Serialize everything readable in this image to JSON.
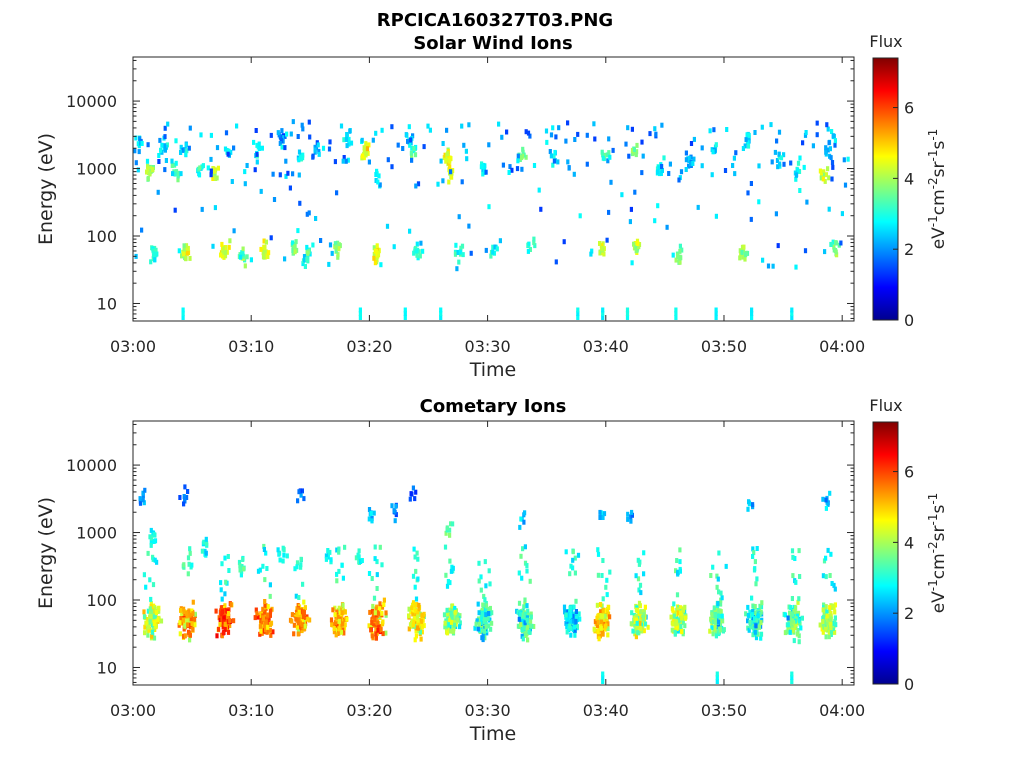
{
  "figure": {
    "filename_title": "RPCICA160327T03.PNG"
  },
  "colorbar": {
    "title": "Flux",
    "range": [
      0,
      7.4
    ],
    "ticks": [
      0,
      2,
      4,
      6
    ],
    "tick_labels": [
      "0",
      "2",
      "4",
      "6"
    ],
    "label_parts": [
      "eV",
      "-1",
      "cm",
      "-2",
      "sr",
      "-1",
      "s",
      "-1"
    ],
    "colormap": "jet"
  },
  "chart_data": [
    {
      "type": "heatmap",
      "title": "Solar Wind Ions",
      "xlabel": "Time",
      "ylabel": "Energy (eV)",
      "x_tick_labels": [
        "03:00",
        "03:10",
        "03:20",
        "03:30",
        "03:40",
        "03:50",
        "04:00"
      ],
      "x_range_minutes": [
        0,
        61
      ],
      "y_scale": "log",
      "y_range": [
        5.5,
        45000
      ],
      "y_tick_labels": [
        "10",
        "100",
        "1000",
        "10000"
      ],
      "y_tick_values": [
        10,
        100,
        1000,
        10000
      ],
      "clusters": [
        {
          "t": 0.5,
          "e": 2500,
          "n": 5,
          "f": 2.2
        },
        {
          "t": 1.3,
          "e": 900,
          "n": 8,
          "f": 4.0
        },
        {
          "t": 1.6,
          "e": 55,
          "n": 8,
          "f": 3.0
        },
        {
          "t": 2.5,
          "e": 2200,
          "n": 5,
          "f": 2.5
        },
        {
          "t": 3.6,
          "e": 900,
          "n": 5,
          "f": 3.5
        },
        {
          "t": 4.3,
          "e": 55,
          "n": 9,
          "f": 4.2
        },
        {
          "t": 4.3,
          "e": 1800,
          "n": 5,
          "f": 2.3
        },
        {
          "t": 5.5,
          "e": 900,
          "n": 4,
          "f": 2.8
        },
        {
          "t": 6.8,
          "e": 850,
          "n": 6,
          "f": 4.2
        },
        {
          "t": 7.6,
          "e": 60,
          "n": 10,
          "f": 4.5
        },
        {
          "t": 8.0,
          "e": 1800,
          "n": 4,
          "f": 2.8
        },
        {
          "t": 9.2,
          "e": 50,
          "n": 8,
          "f": 3.4
        },
        {
          "t": 10.5,
          "e": 1900,
          "n": 4,
          "f": 3.0
        },
        {
          "t": 11.0,
          "e": 60,
          "n": 10,
          "f": 4.3
        },
        {
          "t": 12.5,
          "e": 2800,
          "n": 5,
          "f": 2.0
        },
        {
          "t": 13.5,
          "e": 70,
          "n": 8,
          "f": 3.5
        },
        {
          "t": 14.0,
          "e": 1400,
          "n": 4,
          "f": 2.6
        },
        {
          "t": 14.5,
          "e": 50,
          "n": 8,
          "f": 3.1
        },
        {
          "t": 15.5,
          "e": 1800,
          "n": 4,
          "f": 2.2
        },
        {
          "t": 17.2,
          "e": 60,
          "n": 8,
          "f": 3.8
        },
        {
          "t": 18.0,
          "e": 2800,
          "n": 5,
          "f": 2.4
        },
        {
          "t": 19.5,
          "e": 1800,
          "n": 7,
          "f": 4.4
        },
        {
          "t": 20.5,
          "e": 55,
          "n": 10,
          "f": 4.4
        },
        {
          "t": 20.6,
          "e": 700,
          "n": 4,
          "f": 2.6
        },
        {
          "t": 23.3,
          "e": 2800,
          "n": 5,
          "f": 2.3
        },
        {
          "t": 23.6,
          "e": 1800,
          "n": 4,
          "f": 3.2
        },
        {
          "t": 24.0,
          "e": 60,
          "n": 6,
          "f": 3.2
        },
        {
          "t": 26.5,
          "e": 1400,
          "n": 8,
          "f": 4.5
        },
        {
          "t": 26.8,
          "e": 900,
          "n": 5,
          "f": 4.4
        },
        {
          "t": 27.5,
          "e": 55,
          "n": 6,
          "f": 3.0
        },
        {
          "t": 29.5,
          "e": 1000,
          "n": 5,
          "f": 2.8
        },
        {
          "t": 30.5,
          "e": 60,
          "n": 4,
          "f": 2.8
        },
        {
          "t": 32.8,
          "e": 1500,
          "n": 5,
          "f": 3.5
        },
        {
          "t": 33.5,
          "e": 70,
          "n": 4,
          "f": 3.2
        },
        {
          "t": 35.5,
          "e": 1500,
          "n": 4,
          "f": 2.6
        },
        {
          "t": 39.5,
          "e": 60,
          "n": 7,
          "f": 4.2
        },
        {
          "t": 39.8,
          "e": 1500,
          "n": 4,
          "f": 3.1
        },
        {
          "t": 42.3,
          "e": 1900,
          "n": 4,
          "f": 3.8
        },
        {
          "t": 42.5,
          "e": 70,
          "n": 8,
          "f": 4.0
        },
        {
          "t": 44.5,
          "e": 1000,
          "n": 6,
          "f": 2.6
        },
        {
          "t": 46.0,
          "e": 50,
          "n": 6,
          "f": 3.5
        },
        {
          "t": 47.0,
          "e": 1300,
          "n": 5,
          "f": 2.2
        },
        {
          "t": 49.0,
          "e": 1800,
          "n": 4,
          "f": 2.5
        },
        {
          "t": 51.5,
          "e": 55,
          "n": 8,
          "f": 3.8
        },
        {
          "t": 52.0,
          "e": 2400,
          "n": 5,
          "f": 2.6
        },
        {
          "t": 54.5,
          "e": 1400,
          "n": 5,
          "f": 2.4
        },
        {
          "t": 56.0,
          "e": 900,
          "n": 4,
          "f": 2.8
        },
        {
          "t": 58.3,
          "e": 800,
          "n": 6,
          "f": 4.2
        },
        {
          "t": 58.8,
          "e": 1800,
          "n": 4,
          "f": 2.2
        },
        {
          "t": 59.3,
          "e": 70,
          "n": 6,
          "f": 3.5
        },
        {
          "t": 59.0,
          "e": 3000,
          "n": 3,
          "f": 2.4
        }
      ],
      "low_streaks": [
        4.1,
        19.1,
        22.9,
        25.9,
        37.5,
        39.6,
        41.7,
        45.8,
        49.2,
        52.2,
        55.6
      ]
    },
    {
      "type": "heatmap",
      "title": "Cometary Ions",
      "xlabel": "Time",
      "ylabel": "Energy (eV)",
      "x_tick_labels": [
        "03:00",
        "03:10",
        "03:20",
        "03:30",
        "03:40",
        "03:50",
        "04:00"
      ],
      "x_range_minutes": [
        0,
        61
      ],
      "y_scale": "log",
      "y_range": [
        5.5,
        45000
      ],
      "y_tick_labels": [
        "10",
        "100",
        "1000",
        "10000"
      ],
      "y_tick_values": [
        10,
        100,
        1000,
        10000
      ],
      "bands": [
        {
          "t": 1.5,
          "f": 5.2
        },
        {
          "t": 4.5,
          "f": 6.2
        },
        {
          "t": 7.7,
          "f": 6.8
        },
        {
          "t": 11.0,
          "f": 6.5
        },
        {
          "t": 14.0,
          "f": 6.2
        },
        {
          "t": 17.3,
          "f": 6.0
        },
        {
          "t": 20.5,
          "f": 6.4
        },
        {
          "t": 23.8,
          "f": 5.6
        },
        {
          "t": 26.8,
          "f": 4.6
        },
        {
          "t": 29.5,
          "f": 4.0
        },
        {
          "t": 33.0,
          "f": 4.2
        },
        {
          "t": 37.0,
          "f": 3.6
        },
        {
          "t": 39.6,
          "f": 5.8
        },
        {
          "t": 42.7,
          "f": 5.2
        },
        {
          "t": 46.0,
          "f": 5.0
        },
        {
          "t": 49.3,
          "f": 4.4
        },
        {
          "t": 52.5,
          "f": 4.0
        },
        {
          "t": 55.7,
          "f": 4.4
        },
        {
          "t": 58.7,
          "f": 4.8
        }
      ],
      "high_clusters": [
        {
          "t": 0.6,
          "e": 3500,
          "n": 4,
          "f": 2.0
        },
        {
          "t": 1.5,
          "e": 900,
          "n": 6,
          "f": 2.8
        },
        {
          "t": 4.2,
          "e": 3500,
          "n": 4,
          "f": 1.6
        },
        {
          "t": 6.0,
          "e": 600,
          "n": 5,
          "f": 2.8
        },
        {
          "t": 9.0,
          "e": 300,
          "n": 6,
          "f": 3.2
        },
        {
          "t": 12.5,
          "e": 500,
          "n": 5,
          "f": 3.0
        },
        {
          "t": 14.0,
          "e": 3500,
          "n": 3,
          "f": 1.5
        },
        {
          "t": 16.5,
          "e": 500,
          "n": 4,
          "f": 2.8
        },
        {
          "t": 19.0,
          "e": 400,
          "n": 5,
          "f": 3.0
        },
        {
          "t": 20.0,
          "e": 1800,
          "n": 4,
          "f": 2.2
        },
        {
          "t": 22.0,
          "e": 2000,
          "n": 4,
          "f": 1.8
        },
        {
          "t": 23.5,
          "e": 3500,
          "n": 3,
          "f": 1.6
        },
        {
          "t": 26.5,
          "e": 1100,
          "n": 4,
          "f": 3.4
        },
        {
          "t": 32.8,
          "e": 1500,
          "n": 3,
          "f": 2.5
        },
        {
          "t": 39.5,
          "e": 1700,
          "n": 3,
          "f": 2.2
        },
        {
          "t": 42.0,
          "e": 1700,
          "n": 3,
          "f": 2.2
        },
        {
          "t": 52.0,
          "e": 2500,
          "n": 3,
          "f": 2.4
        },
        {
          "t": 58.5,
          "e": 3000,
          "n": 4,
          "f": 2.4
        }
      ],
      "low_streaks": [
        39.6,
        49.3,
        55.6
      ]
    }
  ]
}
